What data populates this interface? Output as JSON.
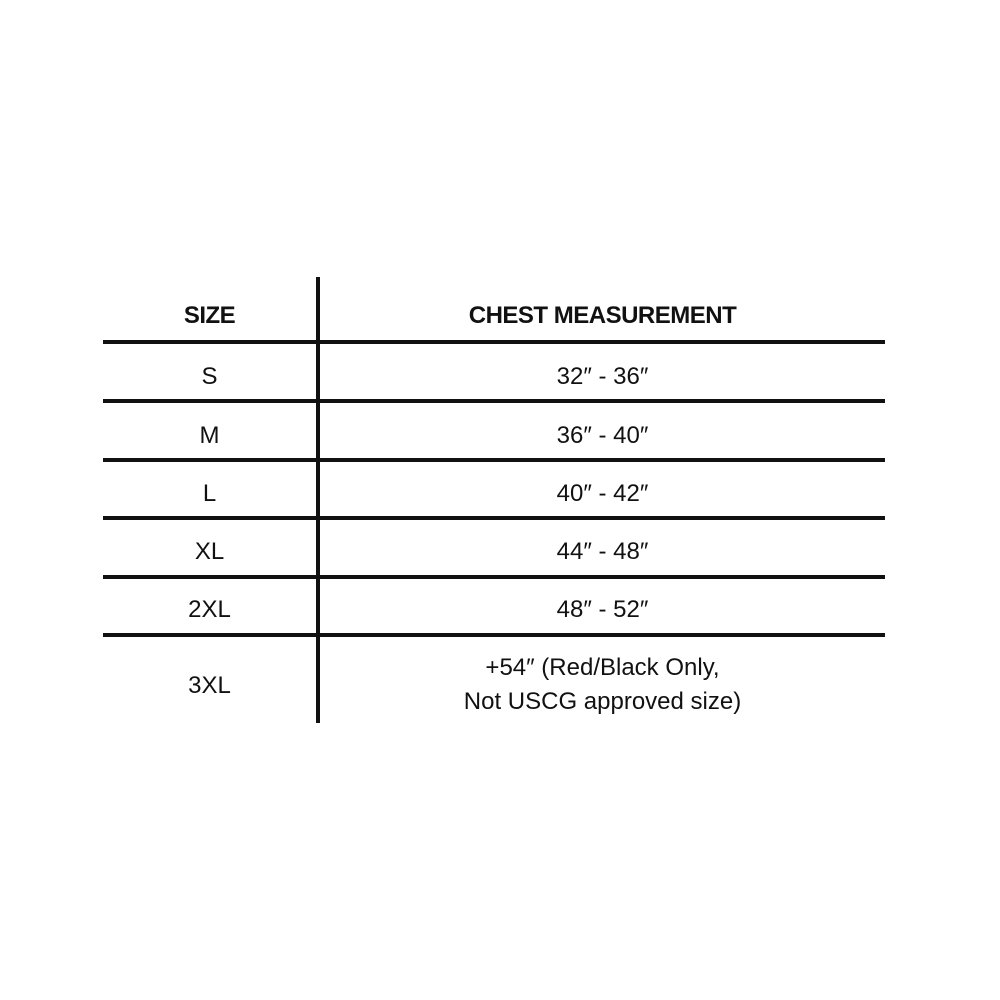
{
  "table": {
    "headers": [
      "SIZE",
      "CHEST MEASUREMENT"
    ],
    "rows": [
      {
        "size": "S",
        "chest": "32″ - 36″"
      },
      {
        "size": "M",
        "chest": "36″ - 40″"
      },
      {
        "size": "L",
        "chest": "40″ - 42″"
      },
      {
        "size": "XL",
        "chest": "44″ - 48″"
      },
      {
        "size": "2XL",
        "chest": "48″ - 52″"
      },
      {
        "size": "3XL",
        "chest_line1": "+54″ (Red/Black Only,",
        "chest_line2": "Not USCG approved size)"
      }
    ]
  }
}
